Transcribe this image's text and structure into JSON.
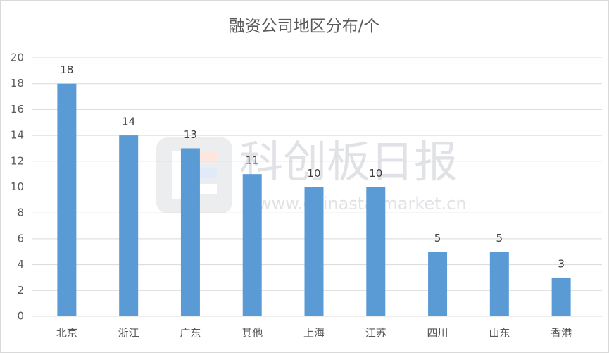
{
  "chart_data": {
    "type": "bar",
    "title": "融资公司地区分布/个",
    "categories": [
      "北京",
      "浙江",
      "广东",
      "其他",
      "上海",
      "江苏",
      "四川",
      "山东",
      "香港"
    ],
    "values": [
      18,
      14,
      13,
      11,
      10,
      10,
      5,
      5,
      3
    ],
    "color": "#5b9bd5",
    "ylim": [
      0,
      20
    ],
    "yticks": [
      0,
      2,
      4,
      6,
      8,
      10,
      12,
      14,
      16,
      18,
      20
    ],
    "grid": true,
    "watermark": "科创板日报",
    "watermark_url": "www.chinastarmarket.cn"
  }
}
